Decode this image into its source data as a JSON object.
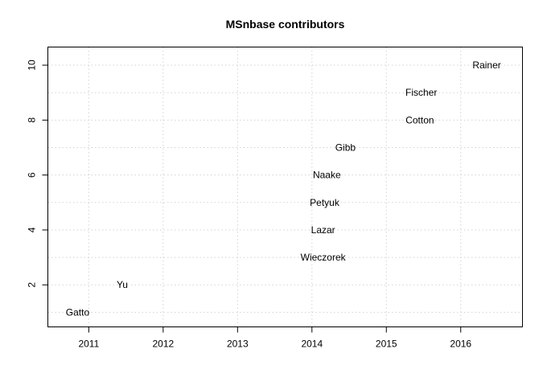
{
  "chart_data": {
    "type": "scatter",
    "title": "MSnbase contributors",
    "xlabel": "",
    "ylabel": "",
    "xlim": [
      2010.45,
      2016.83
    ],
    "ylim": [
      0.47,
      10.66
    ],
    "x_ticks": [
      2011,
      2012,
      2013,
      2014,
      2015,
      2016
    ],
    "y_ticks": [
      2,
      4,
      6,
      8,
      10
    ],
    "y_minor_grid": [
      1,
      3,
      5,
      7,
      9
    ],
    "grid": true,
    "points": [
      {
        "label": "Gatto",
        "x": 2010.85,
        "y": 1
      },
      {
        "label": "Yu",
        "x": 2011.45,
        "y": 2
      },
      {
        "label": "Wieczorek",
        "x": 2014.15,
        "y": 3
      },
      {
        "label": "Lazar",
        "x": 2014.15,
        "y": 4
      },
      {
        "label": "Petyuk",
        "x": 2014.17,
        "y": 5
      },
      {
        "label": "Naake",
        "x": 2014.2,
        "y": 6
      },
      {
        "label": "Gibb",
        "x": 2014.45,
        "y": 7
      },
      {
        "label": "Cotton",
        "x": 2015.45,
        "y": 8
      },
      {
        "label": "Fischer",
        "x": 2015.47,
        "y": 9
      },
      {
        "label": "Rainer",
        "x": 2016.35,
        "y": 10
      }
    ]
  }
}
